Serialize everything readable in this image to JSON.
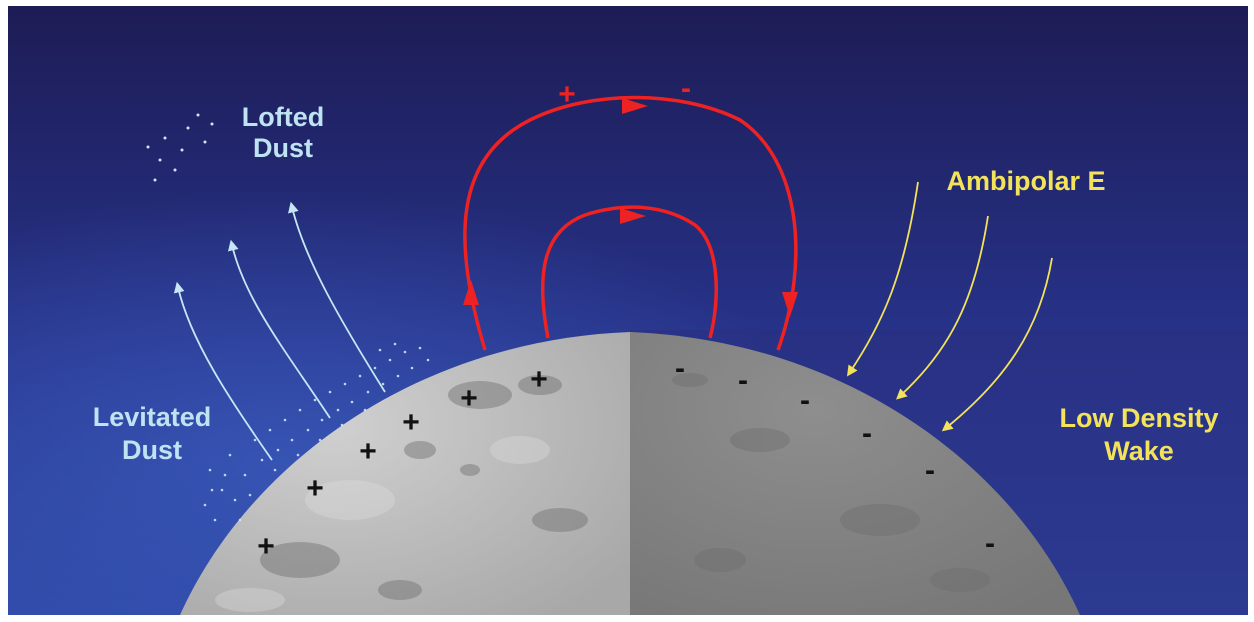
{
  "labels": {
    "lofted_dust": [
      "Lofted",
      "Dust"
    ],
    "levitated_dust": [
      "Levitated",
      "Dust"
    ],
    "ambipolar_e": "Ambipolar E",
    "low_density_wake": [
      "Low Density",
      "Wake"
    ]
  },
  "charges": {
    "top_plus": "+",
    "top_minus": "-",
    "surface_plus": [
      "+",
      "+",
      "+",
      "+",
      "+",
      "+"
    ],
    "surface_minus": [
      "-",
      "-",
      "-",
      "-",
      "-",
      "-"
    ]
  },
  "colors": {
    "background_top": "#1f1f5a",
    "background_mid": "#2a3a8f",
    "wake_band": "#2a3280",
    "moon_sunlit": "#b9b9b9",
    "moon_dark": "#8a8a8a",
    "dust_label": "#bfe3f2",
    "wake_label": "#f2e35a",
    "current_loop": "#ee2222",
    "charge_marks": "#111111"
  }
}
